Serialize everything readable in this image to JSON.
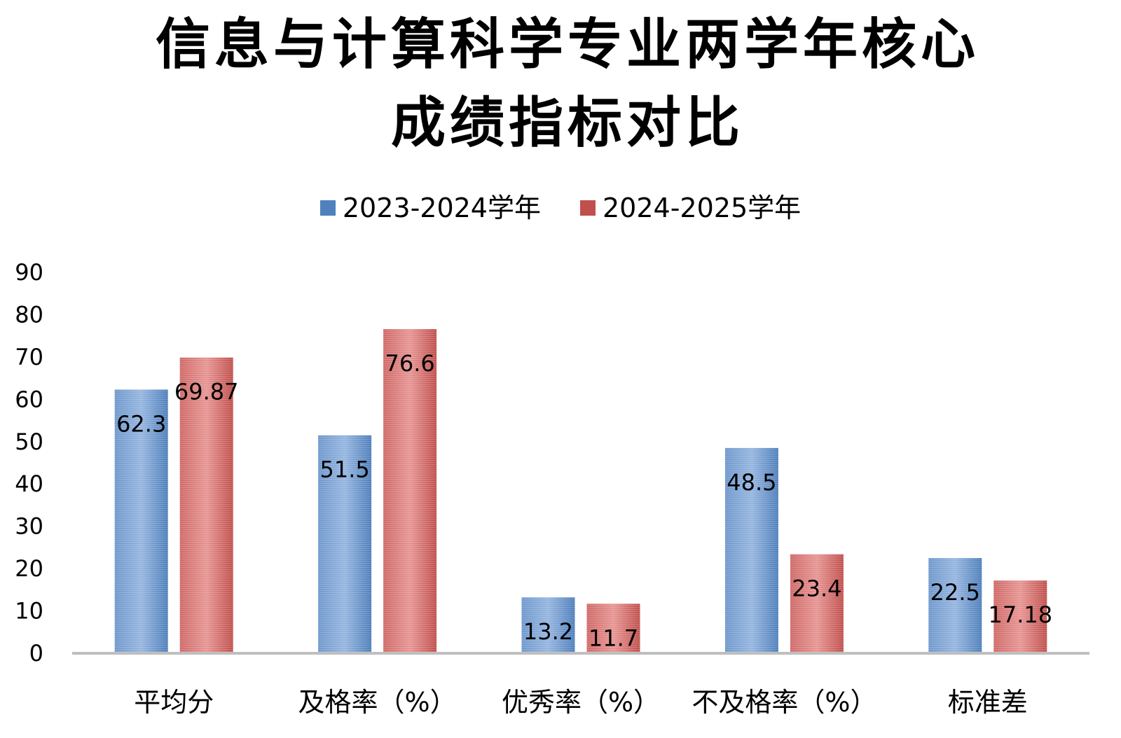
{
  "chart_data": {
    "type": "bar",
    "title": "信息与计算科学专业两学年核心成绩指标对比",
    "title_lines": [
      "信息与计算科学专业两学年核心",
      "成绩指标对比"
    ],
    "categories": [
      "平均分",
      "及格率（%）",
      "优秀率（%）",
      "不及格率（%）",
      "标准差"
    ],
    "series": [
      {
        "name": "2023-2024学年",
        "values": [
          62.3,
          51.5,
          13.2,
          48.5,
          22.5
        ],
        "labels": [
          "62.3",
          "51.5",
          "13.2",
          "48.5",
          "22.5"
        ],
        "color": "#4f81bd"
      },
      {
        "name": "2024-2025学年",
        "values": [
          69.87,
          76.6,
          11.7,
          23.4,
          17.18
        ],
        "labels": [
          "69.87",
          "76.6",
          "11.7",
          "23.4",
          "17.18"
        ],
        "color": "#c0504d"
      }
    ],
    "ylim": [
      0,
      90
    ],
    "yticks": [
      0,
      10,
      20,
      30,
      40,
      50,
      60,
      70,
      80,
      90
    ],
    "xlabel": "",
    "ylabel": "",
    "grid": false,
    "legend": "top-center"
  }
}
